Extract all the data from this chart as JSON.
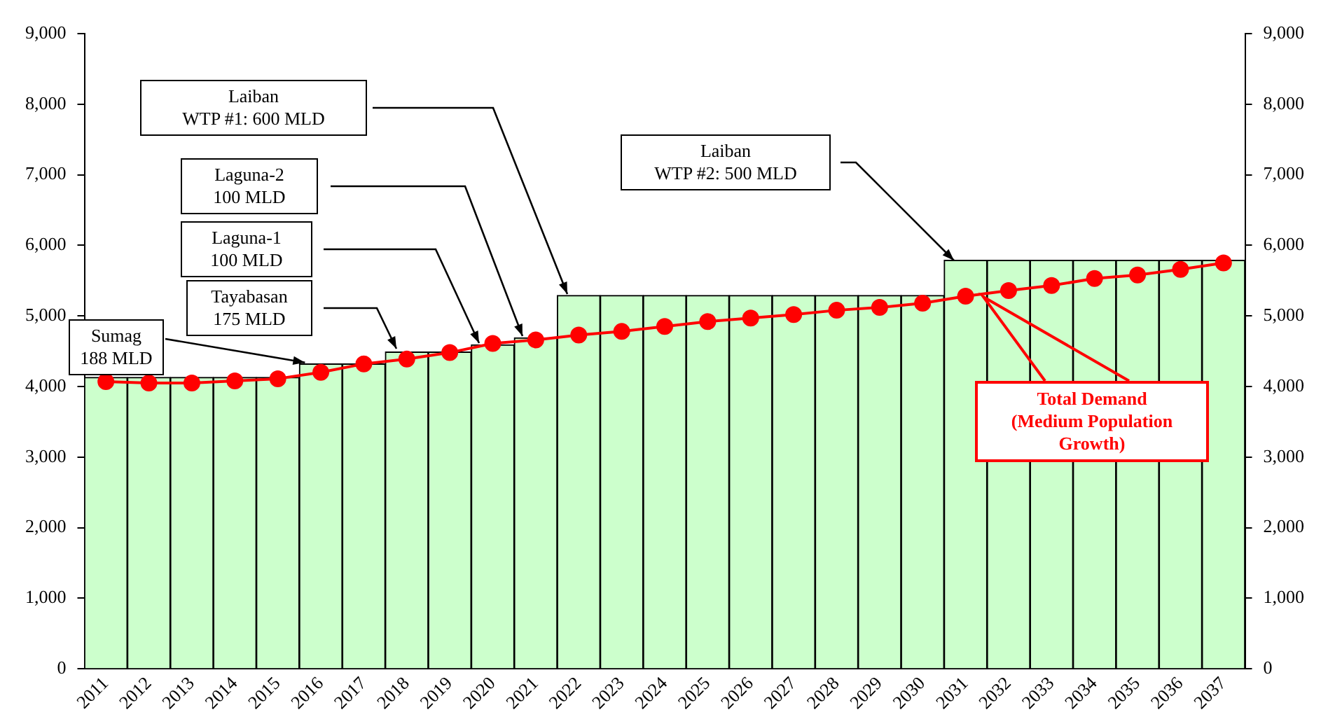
{
  "chart_data": {
    "type": "bar",
    "categories": [
      "2011",
      "2012",
      "2013",
      "2014",
      "2015",
      "2016",
      "2017",
      "2018",
      "2019",
      "2020",
      "2021",
      "2022",
      "2023",
      "2024",
      "2025",
      "2026",
      "2027",
      "2028",
      "2029",
      "2030",
      "2031",
      "2032",
      "2033",
      "2034",
      "2035",
      "2036",
      "2037"
    ],
    "series": [
      {
        "type": "bar",
        "color": "#ccffcc",
        "values": [
          4130,
          4130,
          4130,
          4130,
          4130,
          4320,
          4320,
          4490,
          4490,
          4590,
          4690,
          5290,
          5290,
          5290,
          5290,
          5290,
          5290,
          5290,
          5290,
          5290,
          5790,
          5790,
          5790,
          5790,
          5790,
          5790,
          5790
        ]
      },
      {
        "type": "line",
        "color": "#ff0000",
        "values": [
          4070,
          4050,
          4050,
          4080,
          4110,
          4200,
          4320,
          4390,
          4480,
          4610,
          4660,
          4730,
          4780,
          4850,
          4920,
          4970,
          5020,
          5080,
          5120,
          5180,
          5280,
          5360,
          5430,
          5530,
          5580,
          5660,
          5750
        ]
      }
    ],
    "ylim": [
      0,
      9000
    ],
    "yticks": [
      {
        "value": 0,
        "label": "0"
      },
      {
        "value": 1000,
        "label": "1,000"
      },
      {
        "value": 2000,
        "label": "2,000"
      },
      {
        "value": 3000,
        "label": "3,000"
      },
      {
        "value": 4000,
        "label": "4,000"
      },
      {
        "value": 5000,
        "label": "5,000"
      },
      {
        "value": 6000,
        "label": "6,000"
      },
      {
        "value": 7000,
        "label": "7,000"
      },
      {
        "value": 8000,
        "label": "8,000"
      },
      {
        "value": 9000,
        "label": "9,000"
      }
    ],
    "y2lim": [
      0,
      9000
    ],
    "y2ticks": [
      {
        "value": 0,
        "label": "0"
      },
      {
        "value": 1000,
        "label": "1,000"
      },
      {
        "value": 2000,
        "label": "2,000"
      },
      {
        "value": 3000,
        "label": "3,000"
      },
      {
        "value": 4000,
        "label": "4,000"
      },
      {
        "value": 5000,
        "label": "5,000"
      },
      {
        "value": 6000,
        "label": "6,000"
      },
      {
        "value": 7000,
        "label": "7,000"
      },
      {
        "value": 8000,
        "label": "8,000"
      },
      {
        "value": 9000,
        "label": "9,000"
      }
    ],
    "annotations": [
      "Laiban\nWTP #1: 600 MLD",
      "Laguna-2\n100 MLD",
      "Laguna-1\n100 MLD",
      "Tayabasan\n175 MLD",
      {
        "text": "Sumag\n188 MLD",
        "x": "2016",
        "y": 4320
      },
      "Laiban\nWTP #2: 500 MLD",
      "Total Demand\n(Medium Population\nGrowth)"
    ],
    "marker": "circle",
    "grid": false,
    "legend": false
  }
}
